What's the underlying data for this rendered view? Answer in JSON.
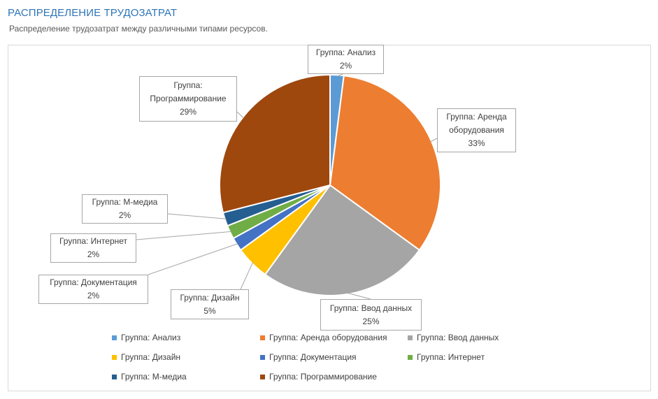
{
  "header": {
    "title": "РАСПРЕДЕЛЕНИЕ ТРУДОЗАТРАТ",
    "subtitle": "Распределение трудозатрат между различными типами ресурсов."
  },
  "chart_data": {
    "type": "pie",
    "title": "",
    "start_angle_deg": 0,
    "direction": "clockwise",
    "legend_position": "bottom",
    "slices": [
      {
        "label": "Группа: Анализ",
        "value": 2,
        "value_label": "2%",
        "color": "#5b9bd5"
      },
      {
        "label": "Группа: Аренда оборудования",
        "value": 33,
        "value_label": "33%",
        "color": "#ed7d31"
      },
      {
        "label": "Группа: Ввод данных",
        "value": 25,
        "value_label": "25%",
        "color": "#a5a5a5"
      },
      {
        "label": "Группа: Дизайн",
        "value": 5,
        "value_label": "5%",
        "color": "#ffc000"
      },
      {
        "label": "Группа: Документация",
        "value": 2,
        "value_label": "2%",
        "color": "#4472c4"
      },
      {
        "label": "Группа: Интернет",
        "value": 2,
        "value_label": "2%",
        "color": "#70ad47"
      },
      {
        "label": "Группа: М-медиа",
        "value": 2,
        "value_label": "2%",
        "color": "#255e91"
      },
      {
        "label": "Группа: Программирование",
        "value": 29,
        "value_label": "29%",
        "color": "#9e480e"
      }
    ]
  }
}
